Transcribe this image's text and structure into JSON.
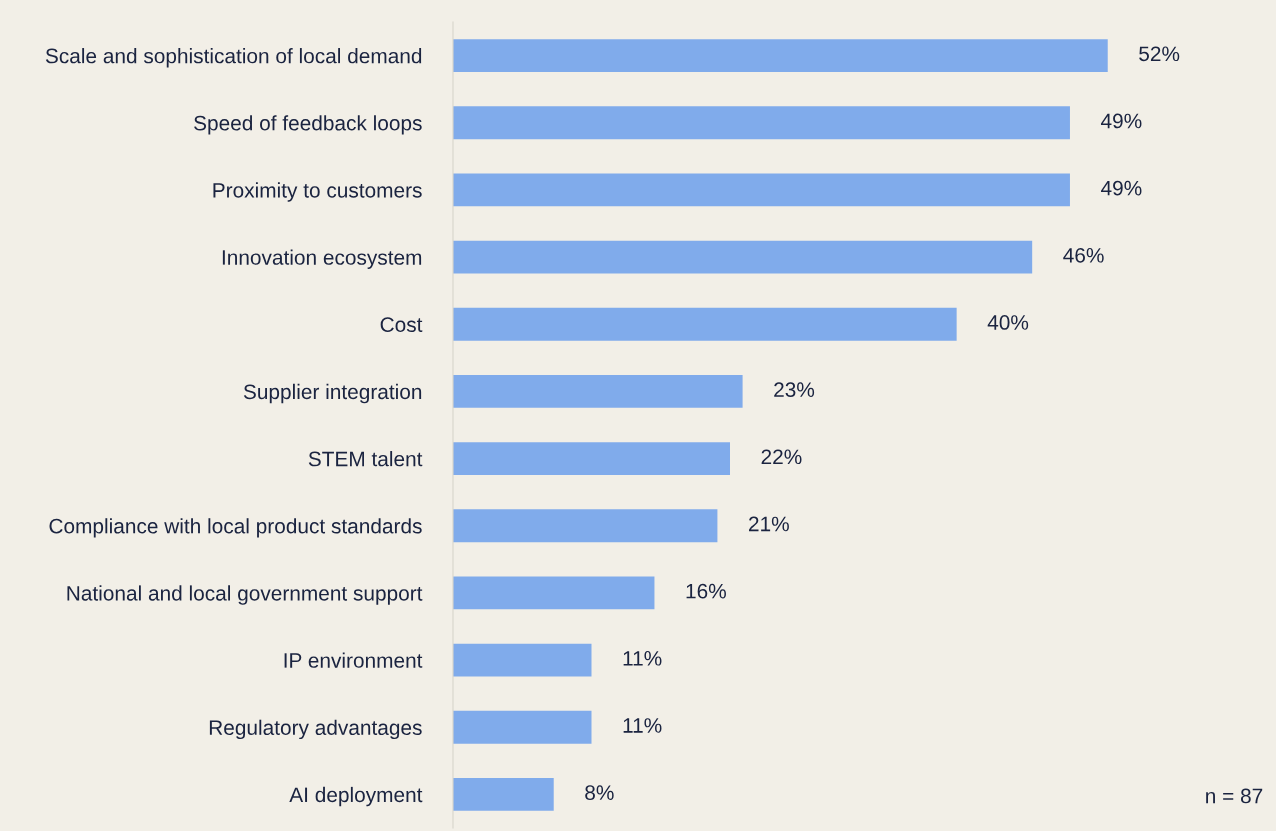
{
  "chart_data": {
    "type": "bar",
    "orientation": "horizontal",
    "categories": [
      "Scale and sophistication of local demand",
      "Speed of feedback loops",
      "Proximity to customers",
      "Innovation ecosystem",
      "Cost",
      "Supplier integration",
      "STEM talent",
      "Compliance with local product standards",
      "National and local government support",
      "IP environment",
      "Regulatory advantages",
      "AI deployment"
    ],
    "values": [
      52,
      49,
      49,
      46,
      40,
      23,
      22,
      21,
      16,
      11,
      11,
      8
    ],
    "value_labels": [
      "52%",
      "49%",
      "49%",
      "46%",
      "40%",
      "23%",
      "22%",
      "21%",
      "16%",
      "11%",
      "11%",
      "8%"
    ],
    "color": "#80abeb",
    "tick_labels": "y",
    "grid": false,
    "legend": false,
    "annotations": [
      "n = 87"
    ]
  }
}
